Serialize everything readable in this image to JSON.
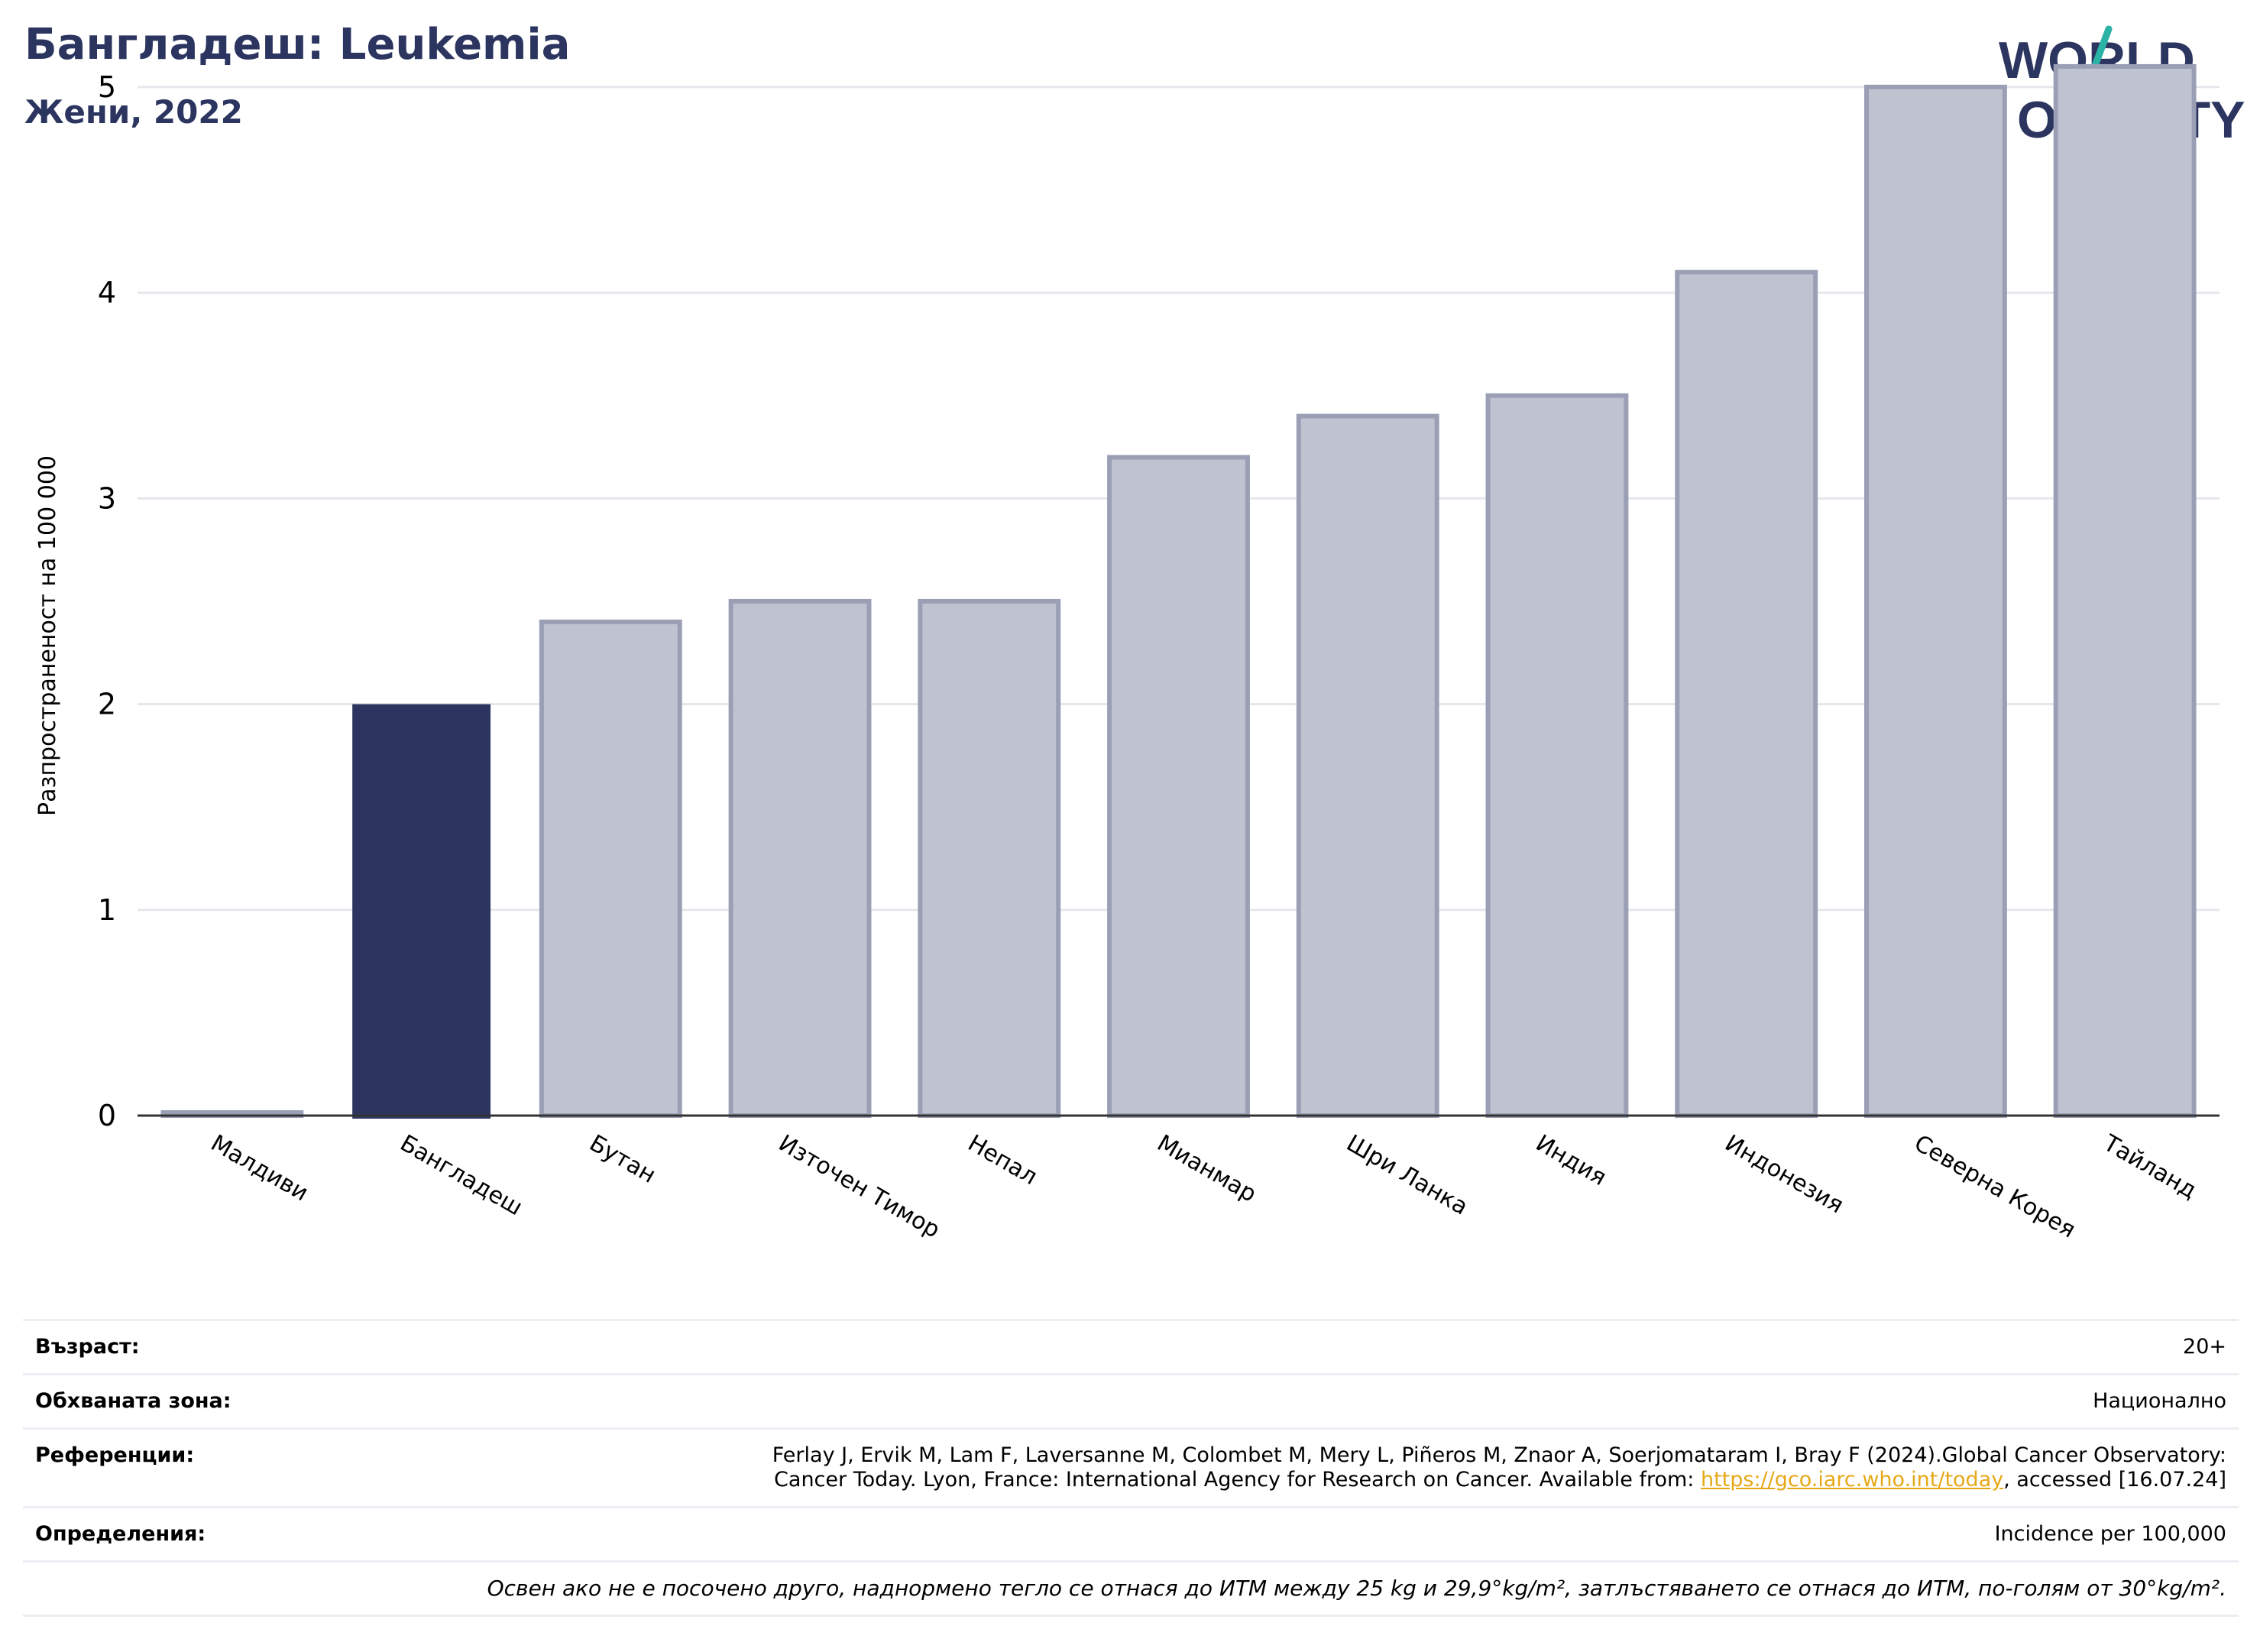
{
  "header": {
    "title": "Бангладеш: Leukemia",
    "subtitle": "Жени, 2022"
  },
  "logo": {
    "line1": "WORLD",
    "line2": "OBESITY"
  },
  "colors": {
    "highlight": "#2c3560",
    "bar_fill": "#bfc3d0",
    "bar_stroke": "#9a9fb5",
    "grid": "#e6e7ec",
    "title": "#2c3560",
    "link": "#e6a817",
    "logo_teal": "#2bb3a8",
    "logo_red": "#e8604c"
  },
  "chart_data": {
    "type": "bar",
    "categories": [
      "Малдиви",
      "Бангладеш",
      "Бутан",
      "Източен Тимор",
      "Непал",
      "Мианмар",
      "Шри Ланка",
      "Индия",
      "Индонезия",
      "Северна Корея",
      "Тайланд"
    ],
    "values": [
      0,
      2.0,
      2.4,
      2.5,
      2.5,
      3.2,
      3.4,
      3.5,
      4.1,
      5.0,
      5.1
    ],
    "highlight_category": "Бангладеш",
    "ylabel": "Разпространеност  на 100 000",
    "xlabel": "",
    "ylim": [
      0,
      5.2
    ],
    "yticks": [
      0,
      1,
      2,
      3,
      4,
      5
    ],
    "grid": true
  },
  "meta": {
    "age_label": "Възраст:",
    "age_value": "20+",
    "area_label": "Обхваната зона:",
    "area_value": "Национално",
    "refs_label": "Референции:",
    "refs_text_1": "Ferlay J, Ervik M, Lam F, Laversanne M, Colombet M, Mery L, Piñeros M, Znaor A, Soerjomataram I, Bray F (2024).Global Cancer Observatory:",
    "refs_text_2": "Cancer Today. Lyon, France: International Agency for Research on Cancer. Available from: ",
    "refs_link": "https://gco.iarc.who.int/today",
    "refs_text_3": ", accessed [16.07.24]",
    "defs_label": "Определения:",
    "defs_value": "Incidence per 100,000",
    "note": "Освен ако не е посочено друго, наднормено тегло се отнася до ИТМ между 25 kg и 29,9°kg/m², затлъстяването се отнася до ИТМ, по-голям от 30°kg/m²."
  }
}
